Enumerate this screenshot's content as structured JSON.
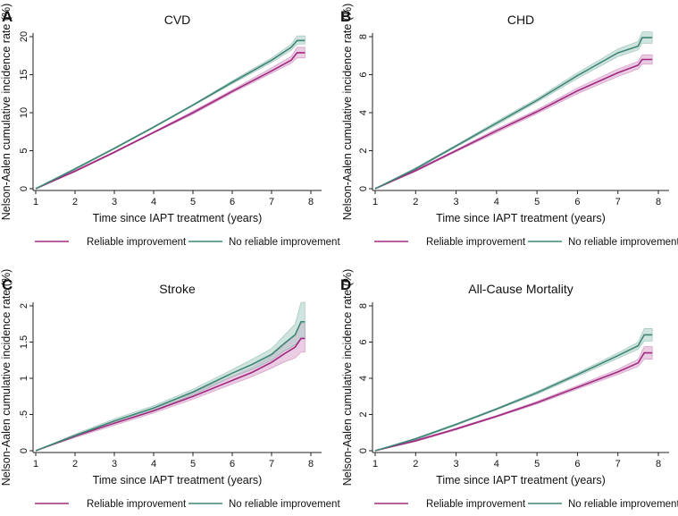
{
  "colors": {
    "reliable": "#a0287f",
    "reliable_band": "#d9a3cc",
    "no_reliable": "#3e8576",
    "no_reliable_band": "#a9cdc4",
    "axis": "#222222"
  },
  "legend": {
    "reliable": "Reliable improvement",
    "no_reliable": "No reliable improvement"
  },
  "chart_data": [
    {
      "panel": "A",
      "type": "line",
      "title": "CVD",
      "xlabel": "Time since IAPT treatment (years)",
      "ylabel": "Nelson-Aalen cumulative incidence rate (%)",
      "xlim": [
        1,
        8
      ],
      "ylim": [
        0,
        20
      ],
      "xticks": [
        1,
        2,
        3,
        4,
        5,
        6,
        7,
        8
      ],
      "xtick_labels": [
        "1",
        "2",
        "3",
        "4",
        "5",
        "6",
        "7",
        "8"
      ],
      "yticks": [
        0,
        5,
        10,
        15,
        20
      ],
      "ytick_labels": [
        "0",
        "5",
        "10",
        "15",
        "20"
      ],
      "grid": false,
      "legend_position": "bottom",
      "series": [
        {
          "name": "Reliable improvement",
          "x": [
            1,
            2,
            3,
            4,
            5,
            6,
            7,
            7.5,
            7.65,
            7.85
          ],
          "y": [
            0,
            2.3,
            4.8,
            7.4,
            10.0,
            12.8,
            15.5,
            16.9,
            17.9,
            17.9
          ],
          "ci_low": [
            0,
            2.2,
            4.7,
            7.3,
            9.8,
            12.6,
            15.2,
            16.5,
            17.2,
            17.2
          ],
          "ci_high": [
            0,
            2.4,
            4.9,
            7.5,
            10.2,
            13.0,
            15.9,
            17.4,
            18.6,
            18.6
          ]
        },
        {
          "name": "No reliable improvement",
          "x": [
            1,
            2,
            3,
            4,
            5,
            6,
            7,
            7.5,
            7.65,
            7.85
          ],
          "y": [
            0,
            2.6,
            5.3,
            8.1,
            11.0,
            14.0,
            16.9,
            18.6,
            19.5,
            19.5
          ],
          "ci_low": [
            0,
            2.5,
            5.2,
            8.0,
            10.9,
            13.8,
            16.6,
            18.2,
            19.0,
            19.0
          ],
          "ci_high": [
            0,
            2.7,
            5.4,
            8.2,
            11.1,
            14.2,
            17.2,
            19.0,
            20.1,
            20.1
          ]
        }
      ]
    },
    {
      "panel": "B",
      "type": "line",
      "title": "CHD",
      "xlabel": "Time since IAPT treatment (years)",
      "ylabel": "Nelson-Aalen cumulative incidence rate (%)",
      "xlim": [
        1,
        8
      ],
      "ylim": [
        0,
        8
      ],
      "xticks": [
        1,
        2,
        3,
        4,
        5,
        6,
        7,
        8
      ],
      "xtick_labels": [
        "1",
        "2",
        "3",
        "4",
        "5",
        "6",
        "7",
        "8"
      ],
      "yticks": [
        0,
        2,
        4,
        6,
        8
      ],
      "ytick_labels": [
        "0",
        "2",
        "4",
        "6",
        "8"
      ],
      "grid": false,
      "legend_position": "bottom",
      "series": [
        {
          "name": "Reliable improvement",
          "x": [
            1,
            2,
            3,
            4,
            5,
            6,
            7,
            7.5,
            7.6,
            7.85
          ],
          "y": [
            0,
            0.95,
            2.0,
            3.05,
            4.05,
            5.15,
            6.1,
            6.5,
            6.8,
            6.8
          ],
          "ci_low": [
            0,
            0.9,
            1.95,
            2.95,
            3.95,
            5.0,
            5.9,
            6.3,
            6.55,
            6.55
          ],
          "ci_high": [
            0,
            1.0,
            2.05,
            3.15,
            4.15,
            5.3,
            6.3,
            6.7,
            7.05,
            7.05
          ]
        },
        {
          "name": "No reliable improvement",
          "x": [
            1,
            2,
            3,
            4,
            5,
            6,
            7,
            7.5,
            7.6,
            7.85
          ],
          "y": [
            0,
            1.05,
            2.25,
            3.45,
            4.65,
            5.95,
            7.15,
            7.5,
            7.95,
            7.95
          ],
          "ci_low": [
            0,
            1.0,
            2.2,
            3.35,
            4.55,
            5.8,
            6.95,
            7.3,
            7.65,
            7.65
          ],
          "ci_high": [
            0,
            1.1,
            2.3,
            3.55,
            4.75,
            6.1,
            7.35,
            7.75,
            8.25,
            8.25
          ]
        }
      ]
    },
    {
      "panel": "C",
      "type": "line",
      "title": "Stroke",
      "xlabel": "Time since IAPT treatment (years)",
      "ylabel": "Nelson-Aalen cumulative incidence rate (%)",
      "xlim": [
        1,
        8
      ],
      "ylim": [
        0,
        2
      ],
      "xticks": [
        1,
        2,
        3,
        4,
        5,
        6,
        7,
        8
      ],
      "xtick_labels": [
        "1",
        "2",
        "3",
        "4",
        "5",
        "6",
        "7",
        "8"
      ],
      "yticks": [
        0,
        0.5,
        1,
        1.5,
        2
      ],
      "ytick_labels": [
        "0",
        ".5",
        "1",
        "1.5",
        "2"
      ],
      "grid": false,
      "legend_position": "bottom",
      "series": [
        {
          "name": "Reliable improvement",
          "x": [
            1,
            2,
            3,
            4,
            5,
            6,
            6.5,
            7,
            7.3,
            7.6,
            7.75,
            7.85
          ],
          "y": [
            0,
            0.2,
            0.38,
            0.55,
            0.75,
            0.97,
            1.08,
            1.22,
            1.33,
            1.43,
            1.55,
            1.55
          ],
          "ci_low": [
            0,
            0.18,
            0.35,
            0.52,
            0.71,
            0.92,
            1.02,
            1.14,
            1.22,
            1.28,
            1.36,
            1.36
          ],
          "ci_high": [
            0,
            0.22,
            0.41,
            0.59,
            0.8,
            1.03,
            1.15,
            1.31,
            1.45,
            1.6,
            1.76,
            1.76
          ]
        },
        {
          "name": "No reliable improvement",
          "x": [
            1,
            2,
            3,
            4,
            5,
            6,
            6.5,
            7,
            7.3,
            7.6,
            7.75,
            7.85
          ],
          "y": [
            0,
            0.21,
            0.41,
            0.59,
            0.81,
            1.07,
            1.19,
            1.33,
            1.47,
            1.6,
            1.78,
            1.78
          ],
          "ci_low": [
            0,
            0.19,
            0.38,
            0.56,
            0.77,
            1.02,
            1.12,
            1.25,
            1.37,
            1.46,
            1.55,
            1.55
          ],
          "ci_high": [
            0,
            0.23,
            0.44,
            0.62,
            0.85,
            1.12,
            1.26,
            1.41,
            1.58,
            1.75,
            2.05,
            2.05
          ]
        }
      ]
    },
    {
      "panel": "D",
      "type": "line",
      "title": "All-Cause Mortality",
      "xlabel": "Time since IAPT treatment (years)",
      "ylabel": "Nelson-Aalen cumulative incidence rate (%)",
      "xlim": [
        1,
        8
      ],
      "ylim": [
        0,
        8
      ],
      "xticks": [
        1,
        2,
        3,
        4,
        5,
        6,
        7,
        8
      ],
      "xtick_labels": [
        "1",
        "2",
        "3",
        "4",
        "5",
        "6",
        "7",
        "8"
      ],
      "yticks": [
        0,
        2,
        4,
        6,
        8
      ],
      "ytick_labels": [
        "0",
        "2",
        "4",
        "6",
        "8"
      ],
      "grid": false,
      "legend_position": "bottom",
      "series": [
        {
          "name": "Reliable improvement",
          "x": [
            1,
            2,
            3,
            4,
            5,
            6,
            7,
            7.5,
            7.65,
            7.85
          ],
          "y": [
            0,
            0.55,
            1.2,
            1.9,
            2.65,
            3.5,
            4.35,
            4.85,
            5.4,
            5.4
          ],
          "ci_low": [
            0,
            0.5,
            1.15,
            1.85,
            2.58,
            3.4,
            4.2,
            4.65,
            5.05,
            5.05
          ],
          "ci_high": [
            0,
            0.6,
            1.25,
            1.95,
            2.72,
            3.6,
            4.5,
            5.05,
            5.75,
            5.75
          ]
        },
        {
          "name": "No reliable improvement",
          "x": [
            1,
            2,
            3,
            4,
            5,
            6,
            7,
            7.5,
            7.65,
            7.85
          ],
          "y": [
            0,
            0.65,
            1.45,
            2.3,
            3.2,
            4.2,
            5.25,
            5.8,
            6.4,
            6.4
          ],
          "ci_low": [
            0,
            0.6,
            1.4,
            2.25,
            3.12,
            4.1,
            5.1,
            5.6,
            6.05,
            6.05
          ],
          "ci_high": [
            0,
            0.7,
            1.5,
            2.35,
            3.28,
            4.3,
            5.4,
            6.0,
            6.75,
            6.75
          ]
        }
      ]
    }
  ]
}
